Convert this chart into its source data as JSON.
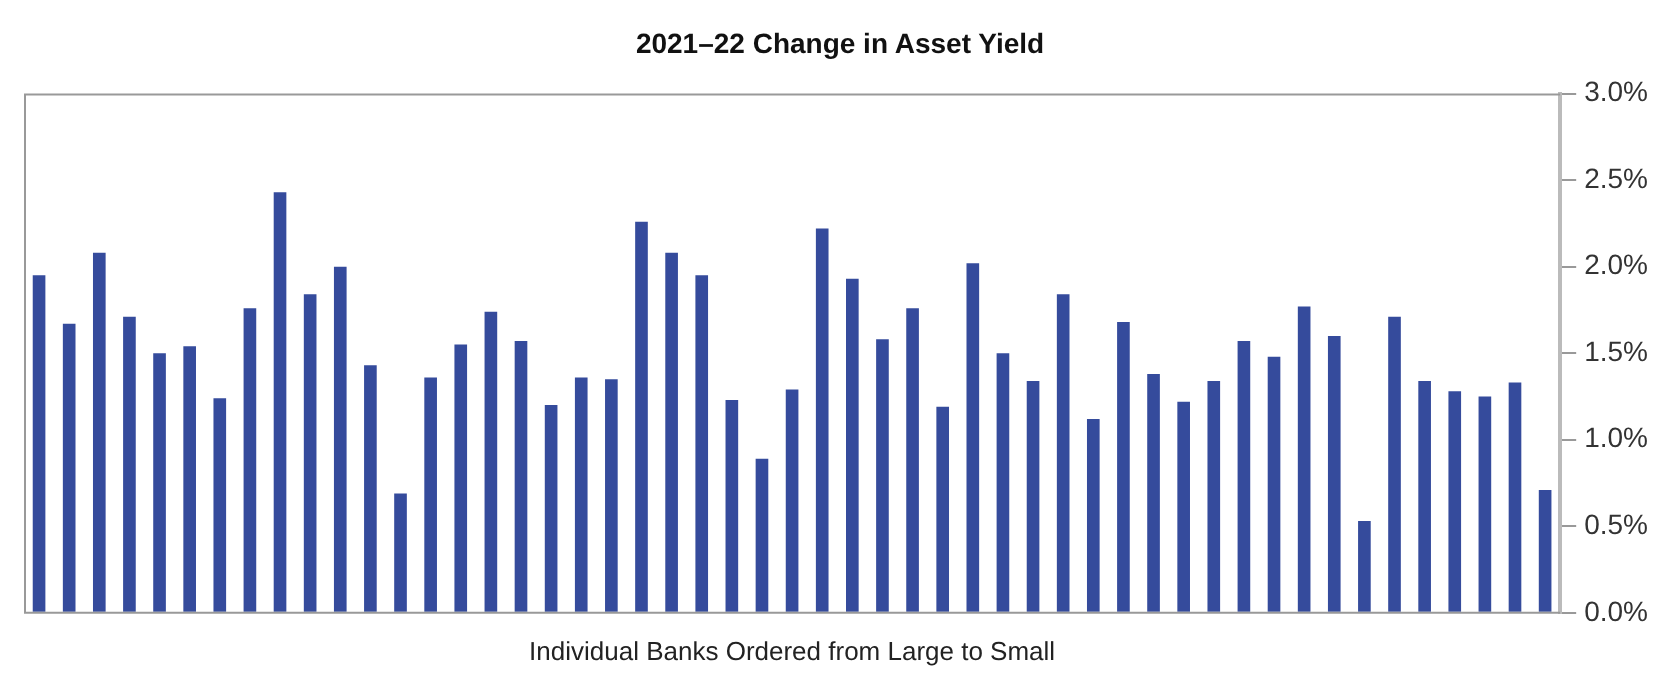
{
  "chart_data": {
    "type": "bar",
    "title": "2021–22 Change in Asset Yield",
    "xlabel": "Individual Banks Ordered from Large to Small",
    "categories": [
      null,
      null,
      null,
      null,
      null,
      null,
      null,
      null,
      null,
      null,
      null,
      null,
      null,
      null,
      null,
      null,
      null,
      null,
      null,
      null,
      null,
      null,
      null,
      null,
      null,
      null,
      null,
      null,
      null,
      null,
      null,
      null,
      null,
      null,
      null,
      null,
      null,
      null,
      null,
      null,
      null,
      null,
      null,
      null,
      null,
      null,
      null,
      null,
      null,
      null,
      null
    ],
    "values": [
      1.95,
      1.67,
      2.08,
      1.71,
      1.5,
      1.54,
      1.24,
      1.76,
      2.43,
      1.84,
      2.0,
      1.43,
      0.69,
      1.36,
      1.55,
      1.74,
      1.57,
      1.2,
      1.36,
      1.35,
      2.26,
      2.08,
      1.95,
      1.23,
      0.89,
      1.29,
      2.22,
      1.93,
      1.58,
      1.76,
      1.19,
      2.02,
      1.5,
      1.34,
      1.84,
      1.12,
      1.68,
      1.38,
      1.22,
      1.34,
      1.57,
      1.48,
      1.77,
      1.6,
      0.53,
      1.71,
      1.34,
      1.28,
      1.25,
      1.33,
      0.71
    ],
    "color": "#354b9c",
    "ylim": [
      0,
      3
    ],
    "yticks": [
      {
        "value": 0,
        "label": "0.0%"
      },
      {
        "value": 0.5,
        "label": "0.5%"
      },
      {
        "value": 1,
        "label": "1.0%"
      },
      {
        "value": 1.5,
        "label": "1.5%"
      },
      {
        "value": 2,
        "label": "2.0%"
      },
      {
        "value": 2.5,
        "label": "2.5%"
      },
      {
        "value": 3,
        "label": "3.0%"
      }
    ],
    "grid": false,
    "legend": false
  }
}
